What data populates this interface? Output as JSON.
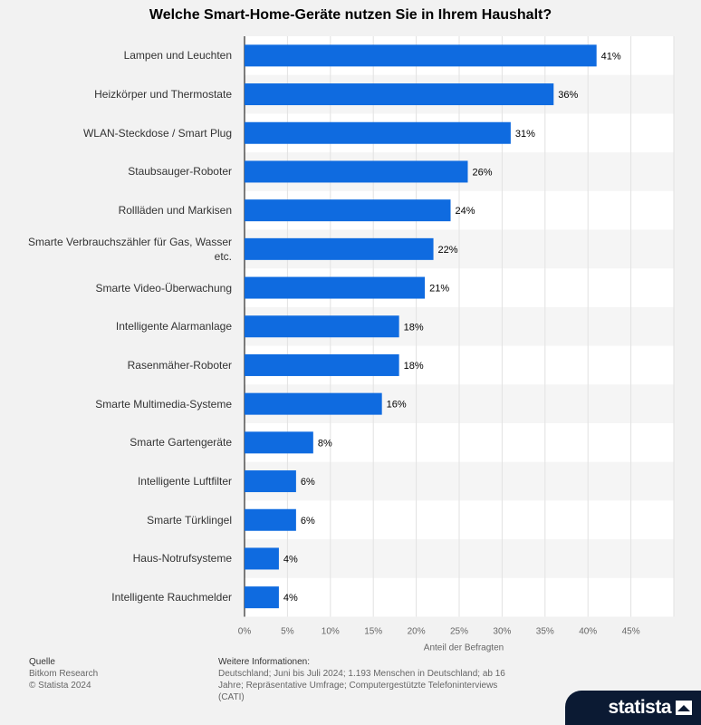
{
  "chart_data": {
    "type": "bar",
    "orientation": "horizontal",
    "title": "Welche Smart-Home-Geräte nutzen Sie in Ihrem Haushalt?",
    "categories": [
      "Lampen und Leuchten",
      "Heizkörper und Thermostate",
      "WLAN-Steckdose / Smart Plug",
      "Staubsauger-Roboter",
      "Rollläden und Markisen",
      "Smarte Verbrauchszähler für Gas, Wasser etc.",
      "Smarte Video-Überwachung",
      "Intelligente Alarmanlage",
      "Rasenmäher-Roboter",
      "Smarte Multimedia-Systeme",
      "Smarte Gartengeräte",
      "Intelligente Luftfilter",
      "Smarte Türklingel",
      "Haus-Notrufsysteme",
      "Intelligente Rauchmelder"
    ],
    "values": [
      41,
      36,
      31,
      26,
      24,
      22,
      21,
      18,
      18,
      16,
      8,
      6,
      6,
      4,
      4
    ],
    "value_labels": [
      "41%",
      "36%",
      "31%",
      "26%",
      "24%",
      "22%",
      "21%",
      "18%",
      "18%",
      "16%",
      "8%",
      "6%",
      "6%",
      "4%",
      "4%"
    ],
    "xlabel": "Anteil der Befragten",
    "xlim": [
      0,
      50
    ],
    "xticks": [
      0,
      5,
      10,
      15,
      20,
      25,
      30,
      35,
      40,
      45
    ],
    "xtick_labels": [
      "0%",
      "5%",
      "10%",
      "15%",
      "20%",
      "25%",
      "30%",
      "35%",
      "40%",
      "45%"
    ],
    "grid": true,
    "bar_color": "#0f6be0"
  },
  "footer": {
    "source_heading": "Quelle",
    "source_lines": [
      "Bitkom Research",
      "© Statista 2024"
    ],
    "info_heading": "Weitere Informationen:",
    "info_lines": [
      "Deutschland; Juni bis Juli 2024; 1.193 Menschen in Deutschland; ab 16",
      "Jahre; Repräsentative Umfrage; Computergestützte Telefoninterviews",
      "(CATI)"
    ]
  },
  "brand": {
    "name": "statista",
    "icon": "statista-logo-icon"
  },
  "colors": {
    "background": "#f2f2f2",
    "bar": "#0f6be0",
    "band_light": "#ffffff",
    "band_dark": "#f5f5f5"
  }
}
